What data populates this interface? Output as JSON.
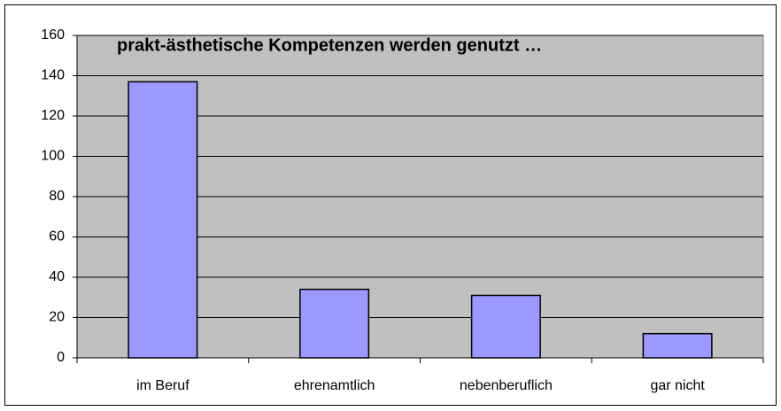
{
  "chart_data": {
    "type": "bar",
    "title": "prakt-ästhetische Kompetenzen werden genutzt …",
    "categories": [
      "im Beruf",
      "ehrenamtlich",
      "nebenberuflich",
      "gar nicht"
    ],
    "values": [
      137,
      34,
      31,
      12
    ],
    "color": "#9999ff",
    "ylim": [
      0,
      160
    ],
    "yticks": [
      0,
      20,
      40,
      60,
      80,
      100,
      120,
      140,
      160
    ],
    "grid": true
  }
}
